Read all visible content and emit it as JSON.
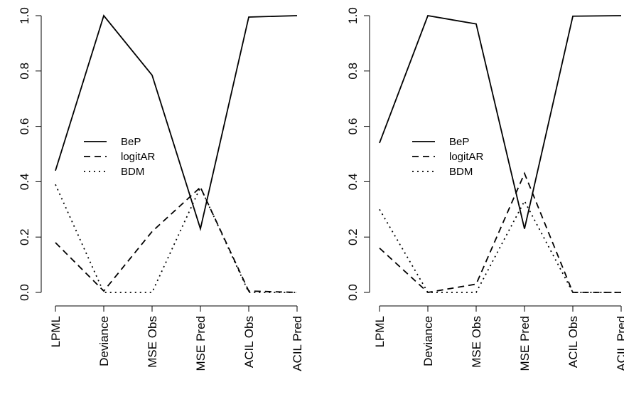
{
  "chart_data": [
    {
      "type": "line",
      "categories": [
        "LPML",
        "Deviance",
        "MSE Obs",
        "MSE Pred",
        "ACIL Obs",
        "ACIL Pred"
      ],
      "series": [
        {
          "name": "BeP",
          "color": "#000000",
          "dash": "solid",
          "values": [
            0.44,
            1.0,
            0.785,
            0.23,
            0.995,
            1.0
          ]
        },
        {
          "name": "logitAR",
          "color": "#000000",
          "dash": "dashed",
          "values": [
            0.18,
            0.005,
            0.22,
            0.38,
            0.005,
            0.0
          ]
        },
        {
          "name": "BDM",
          "color": "#000000",
          "dash": "dotted",
          "values": [
            0.39,
            0.0,
            0.0,
            0.38,
            0.0,
            0.0
          ]
        }
      ],
      "ylim": [
        0,
        1
      ],
      "yticks": [
        {
          "value": 0,
          "label": "0.0"
        },
        0.2,
        0.4,
        0.6,
        0.8,
        {
          "value": 1,
          "label": "1.0"
        }
      ],
      "legend": "center-left",
      "grid": false
    },
    {
      "type": "line",
      "categories": [
        "LPML",
        "Deviance",
        "MSE Obs",
        "MSE Pred",
        "ACIL Obs",
        "ACIL Pred"
      ],
      "series": [
        {
          "name": "BeP",
          "color": "#000000",
          "dash": "solid",
          "values": [
            0.54,
            1.0,
            0.97,
            0.23,
            0.998,
            1.0
          ]
        },
        {
          "name": "logitAR",
          "color": "#000000",
          "dash": "dashed",
          "values": [
            0.16,
            0.0,
            0.03,
            0.43,
            0.0,
            0.0
          ]
        },
        {
          "name": "BDM",
          "color": "#000000",
          "dash": "dotted",
          "values": [
            0.3,
            0.0,
            0.0,
            0.33,
            0.0,
            0.0
          ]
        }
      ],
      "ylim": [
        0,
        1
      ],
      "yticks": [
        {
          "value": 0,
          "label": "0.0"
        },
        0.2,
        0.4,
        0.6,
        0.8,
        {
          "value": 1,
          "label": "1.0"
        }
      ],
      "legend": "center-left",
      "grid": false
    }
  ]
}
